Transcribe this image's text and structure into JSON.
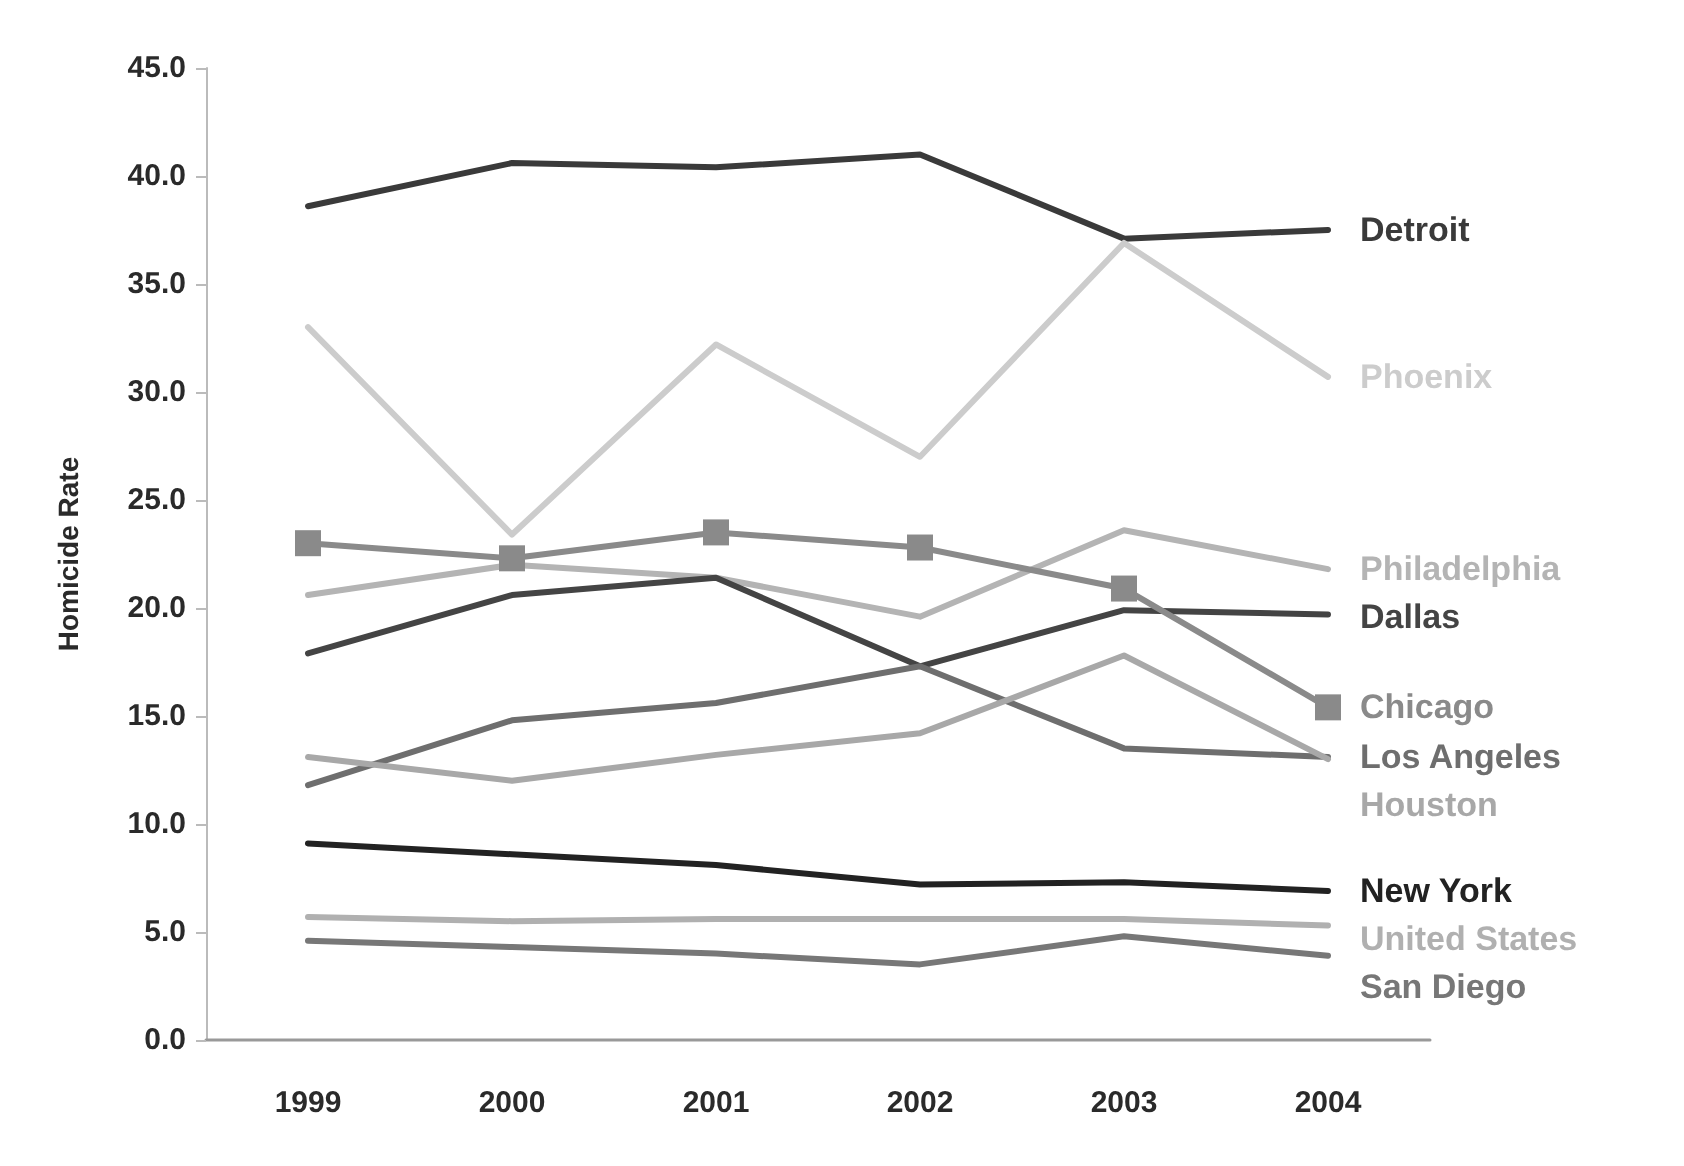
{
  "chart_data": {
    "type": "line",
    "ylabel": "Homicide Rate",
    "categories": [
      "1999",
      "2000",
      "2001",
      "2002",
      "2003",
      "2004"
    ],
    "ylim": [
      0,
      45
    ],
    "yticks": [
      {
        "value": 0,
        "label": "0.0"
      },
      {
        "value": 5,
        "label": "5.0"
      },
      {
        "value": 10,
        "label": "10.0"
      },
      {
        "value": 15,
        "label": "15.0"
      },
      {
        "value": 20,
        "label": "20.0"
      },
      {
        "value": 25,
        "label": "25.0"
      },
      {
        "value": 30,
        "label": "30.0"
      },
      {
        "value": 35,
        "label": "35.0"
      },
      {
        "value": 40,
        "label": "40.0"
      },
      {
        "value": 45,
        "label": "45.0"
      }
    ],
    "grid": false,
    "legend": false,
    "marker": "none",
    "series": [
      {
        "name": "Detroit",
        "color": "#3a3a3a",
        "values": [
          38.6,
          40.6,
          40.4,
          41.0,
          37.1,
          37.5
        ]
      },
      {
        "name": "Phoenix",
        "color": "#cccccc",
        "values": [
          33.0,
          23.4,
          32.2,
          27.0,
          36.9,
          30.7
        ]
      },
      {
        "name": "Philadelphia",
        "color": "#b4b4b4",
        "values": [
          20.6,
          22.0,
          21.4,
          19.6,
          23.6,
          21.8
        ]
      },
      {
        "name": "Dallas",
        "color": "#444444",
        "values": [
          17.9,
          20.6,
          21.4,
          17.3,
          19.9,
          19.7
        ]
      },
      {
        "name": "Chicago",
        "color": "#8a8a8a",
        "marker": "square",
        "values": [
          23.0,
          22.3,
          23.5,
          22.8,
          20.9,
          15.4
        ]
      },
      {
        "name": "Los Angeles",
        "color": "#6e6e6e",
        "values": [
          11.8,
          14.8,
          15.6,
          17.3,
          13.5,
          13.1
        ]
      },
      {
        "name": "Houston",
        "color": "#a8a8a8",
        "values": [
          13.1,
          12.0,
          13.2,
          14.2,
          17.8,
          13.0
        ]
      },
      {
        "name": "New York",
        "color": "#222222",
        "values": [
          9.1,
          8.6,
          8.1,
          7.2,
          7.3,
          6.9
        ]
      },
      {
        "name": "United States",
        "color": "#b0b0b0",
        "values": [
          5.7,
          5.5,
          5.6,
          5.6,
          5.6,
          5.3
        ]
      },
      {
        "name": "San Diego",
        "color": "#777777",
        "values": [
          4.6,
          4.3,
          4.0,
          3.5,
          4.8,
          3.9
        ]
      }
    ]
  }
}
